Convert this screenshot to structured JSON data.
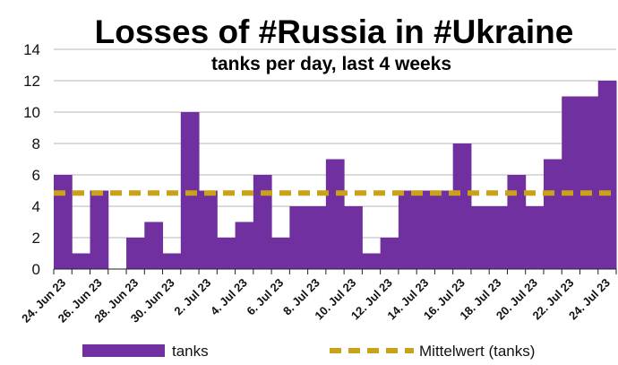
{
  "chart_data": {
    "type": "bar",
    "title": "Losses of #Russia in #Ukraine",
    "subtitle": "tanks per day, last 4 weeks",
    "ylim": [
      0,
      14
    ],
    "yticks": [
      0,
      2,
      4,
      6,
      8,
      10,
      12,
      14
    ],
    "categories": [
      "24. Jun 23",
      "25. Jun 23",
      "26. Jun 23",
      "27. Jun 23",
      "28. Jun 23",
      "29. Jun 23",
      "30. Jun 23",
      "1. Jul 23",
      "2. Jul 23",
      "3. Jul 23",
      "4. Jul 23",
      "5. Jul 23",
      "6. Jul 23",
      "7. Jul 23",
      "8. Jul 23",
      "9. Jul 23",
      "10. Jul 23",
      "11. Jul 23",
      "12. Jul 23",
      "13. Jul 23",
      "14. Jul 23",
      "15. Jul 23",
      "16. Jul 23",
      "17. Jul 23",
      "18. Jul 23",
      "19. Jul 23",
      "20. Jul 23",
      "21. Jul 23",
      "22. Jul 23",
      "23. Jul 23",
      "24. Jul 23"
    ],
    "tick_labels": [
      "24. Jun 23",
      "26. Jun 23",
      "28. Jun 23",
      "30. Jun 23",
      "2. Jul 23",
      "4. Jul 23",
      "6. Jul 23",
      "8. Jul 23",
      "10. Jul 23",
      "12. Jul 23",
      "14. Jul 23",
      "16. Jul 23",
      "18. Jul 23",
      "20. Jul 23",
      "22. Jul 23",
      "24. Jul 23"
    ],
    "series": [
      {
        "name": "tanks",
        "color": "#7030a0",
        "values": [
          6,
          1,
          5,
          0,
          2,
          3,
          1,
          10,
          5,
          2,
          3,
          6,
          2,
          4,
          4,
          7,
          4,
          1,
          2,
          5,
          5,
          5,
          8,
          4,
          4,
          6,
          4,
          7,
          11,
          11,
          12
        ]
      }
    ],
    "reference_line": {
      "name": "Mittelwert (tanks)",
      "value": 4.84,
      "color": "#c9a21a",
      "style": "dashed"
    },
    "grid": "horizontal",
    "legend_position": "bottom"
  }
}
